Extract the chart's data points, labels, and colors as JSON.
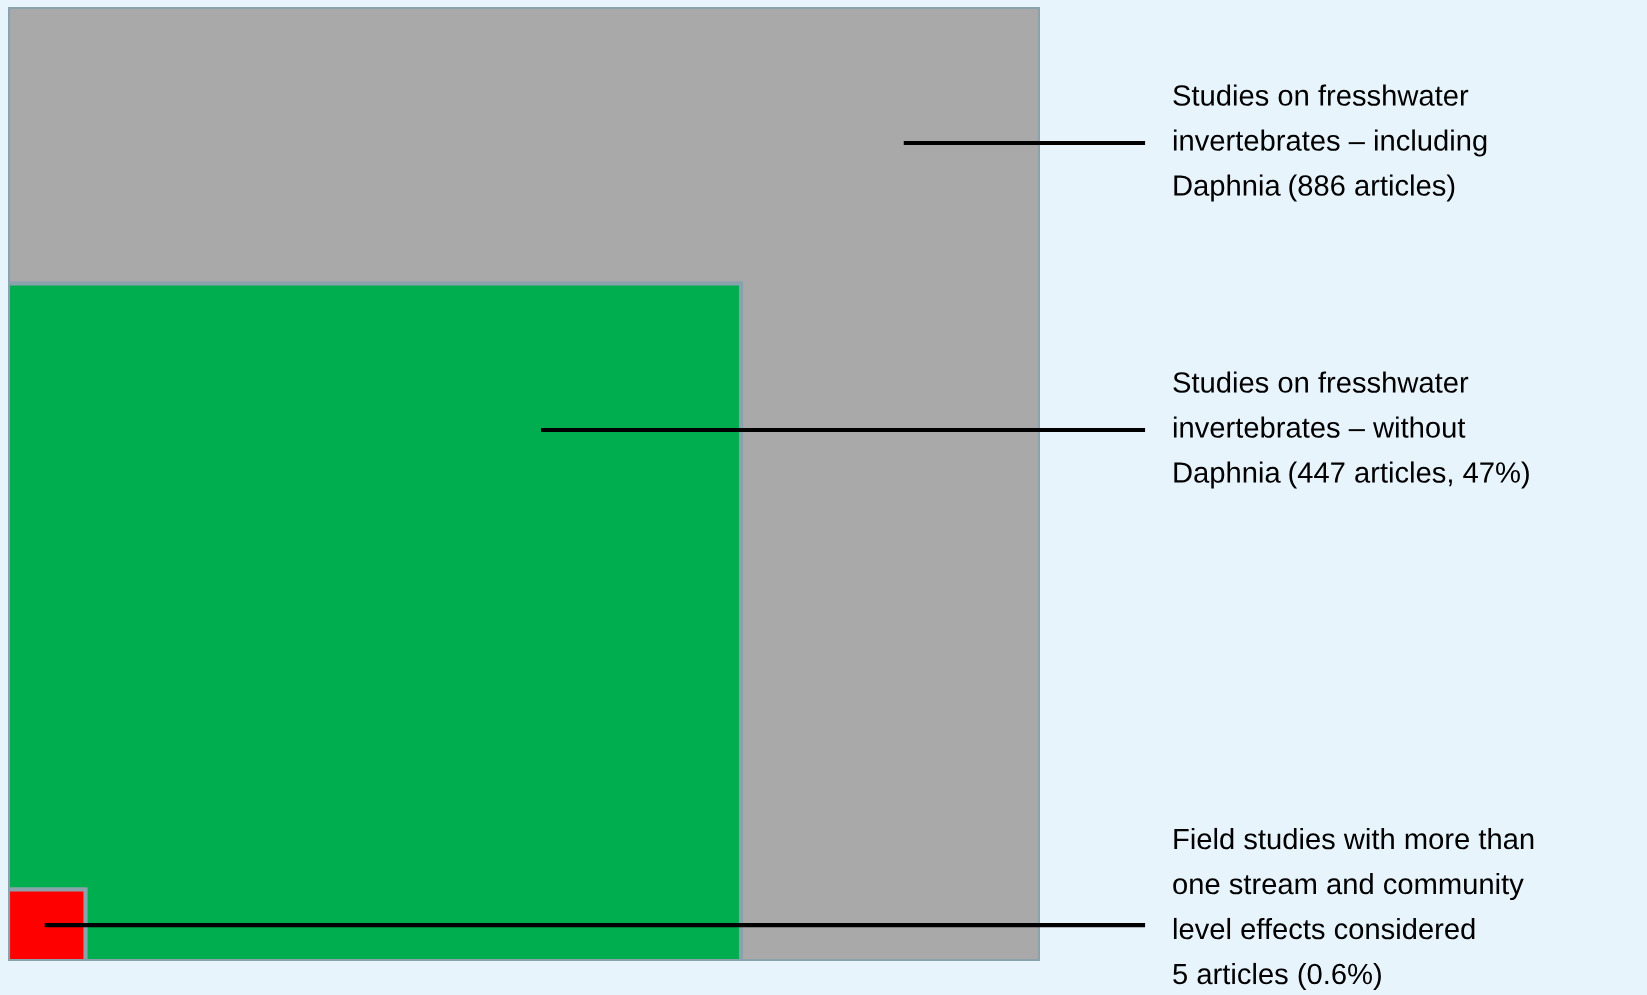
{
  "chart_data": {
    "type": "other",
    "categories": [
      "Studies on fresshwater\ninvertebrates – including\nDaphnia",
      "Studies on fresshwater\ninvertebrates – without\nDaphnia",
      "Field studies with more than\none stream and community\nlevel effects considered\n"
    ],
    "values": [
      886,
      447,
      5
    ],
    "value_labels": [
      "(886 articles)",
      "(447 articles, 47%)",
      "5 articles (0.6%)"
    ],
    "colors": [
      "#a9a9a9",
      "#00ad4f",
      "#ff0000"
    ]
  }
}
